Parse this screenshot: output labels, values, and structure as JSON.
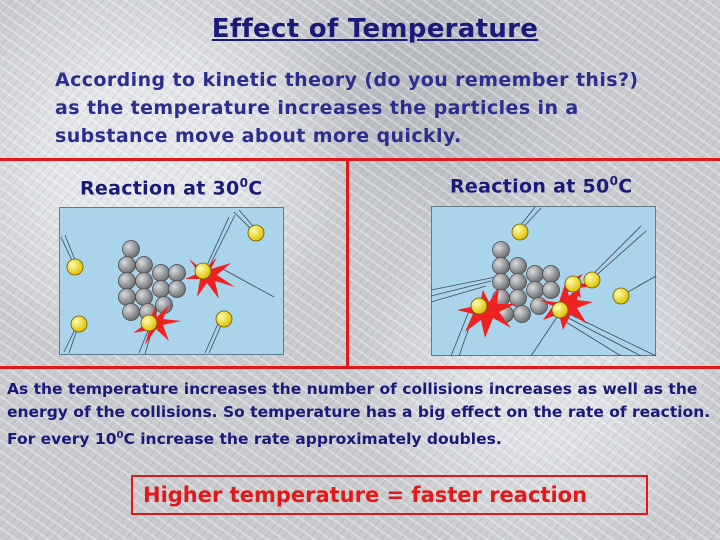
{
  "title": "Effect of Temperature",
  "intro": "According to kinetic theory (do you remember this?) as the temperature increases the particles in a substance move about more quickly.",
  "left_caption": {
    "prefix": "Reaction at 30",
    "superscript": "0",
    "suffix": "C"
  },
  "right_caption": {
    "prefix": "Reaction at 50",
    "superscript": "0",
    "suffix": "C"
  },
  "explanation": {
    "part1": "As the temperature increases the number of collisions increases as well as the energy of the collisions. So temperature has a big effect on the rate of reaction. For every 10",
    "superscript": "0",
    "part2": "C increase the rate approximately doubles."
  },
  "conclusion": "Higher temperature = faster reaction",
  "colors": {
    "title": "#1a1a78",
    "accent_red": "#e01a1a",
    "diagram_bg": "#a9d4ec",
    "particle_grey": "#8a8c90",
    "particle_yellow": "#f4e020"
  }
}
